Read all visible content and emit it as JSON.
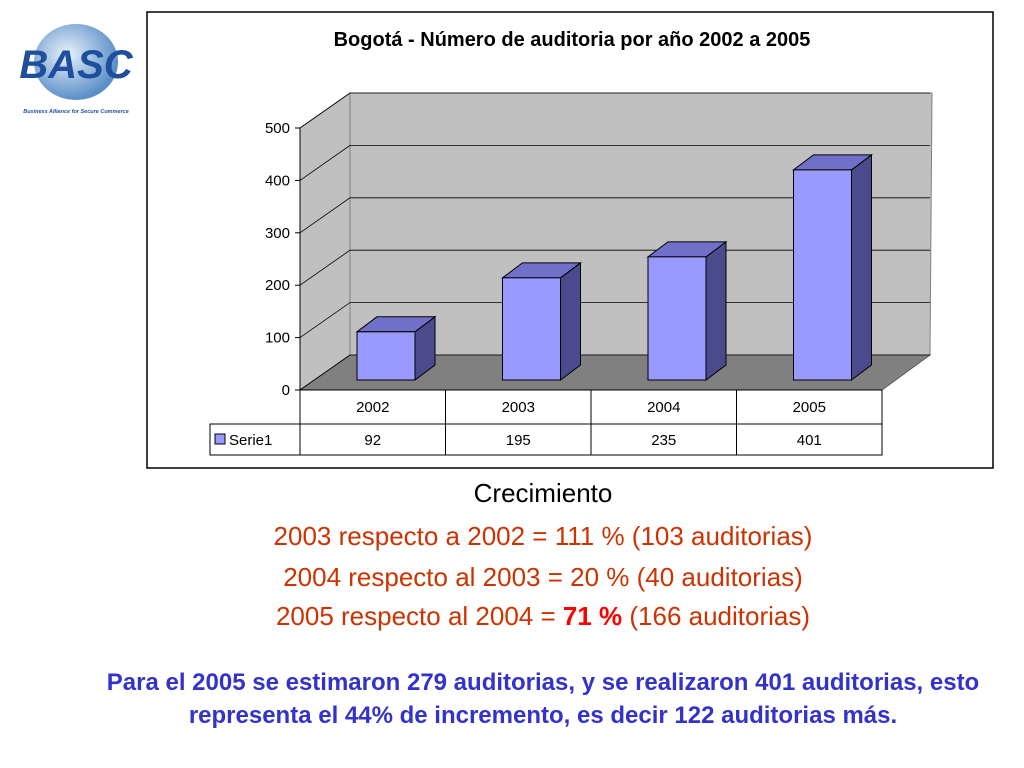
{
  "logo": {
    "text": "BASC",
    "caption": "Business Alliance for Secure Commerce"
  },
  "chart_data": {
    "type": "bar3d",
    "title": "Bogotá - Número de auditoria por año 2002 a 2005",
    "categories": [
      "2002",
      "2003",
      "2004",
      "2005"
    ],
    "series": [
      {
        "name": "Serie1",
        "color": "#9999ff",
        "values": [
          92,
          195,
          235,
          401
        ]
      }
    ],
    "ylim": [
      0,
      500
    ],
    "yticks": [
      0,
      100,
      200,
      300,
      400,
      500
    ],
    "grid": true,
    "data_table": true
  },
  "growth": {
    "heading": "Crecimiento",
    "line1": "2003 respecto a 2002 = 111 % (103 auditorias)",
    "line2": "2004 respecto al 2003 = 20 % (40 auditorias)",
    "line3": {
      "before": "2005 respecto al 2004 = ",
      "bold": "71 %",
      "after": " (166 auditorias)"
    }
  },
  "note": "Para el 2005 se estimaron 279 auditorias, y se realizaron 401 auditorias, esto representa el 44% de incremento, es decir 122 auditorias más."
}
